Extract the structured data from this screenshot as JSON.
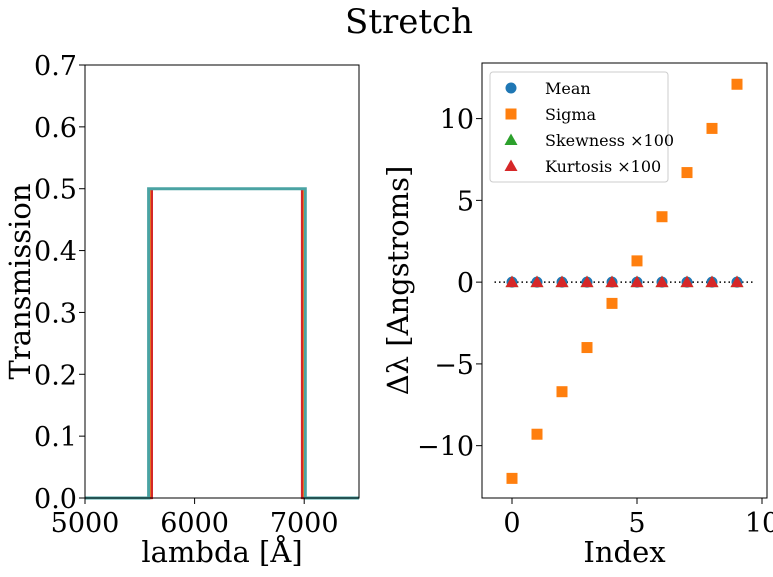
{
  "figure": {
    "suptitle": "Stretch"
  },
  "colors": {
    "blue": "#1f77b4",
    "orange": "#ff7f0e",
    "green": "#2ca02c",
    "red": "#d62728",
    "teal": "#4aa3a3"
  },
  "chart_data": [
    {
      "type": "line",
      "xlabel": "lambda [Å]",
      "ylabel": "Transmission",
      "xlim": [
        5000,
        7500
      ],
      "ylim": [
        0,
        0.7
      ],
      "xticks": [
        "5000",
        "6000",
        "7000"
      ],
      "yticks": [
        "0.0",
        "0.1",
        "0.2",
        "0.3",
        "0.4",
        "0.5",
        "0.6",
        "0.7"
      ],
      "grid": false,
      "series": [
        {
          "color": "#1f77b4",
          "x": [
            5000,
            5590,
            5590,
            7000,
            7000,
            7500
          ],
          "y": [
            0,
            0,
            0.5,
            0.5,
            0,
            0
          ]
        },
        {
          "color": "#ff7f0e",
          "x": [
            5000,
            5600,
            5600,
            6990,
            6990,
            7500
          ],
          "y": [
            0,
            0,
            0.5,
            0.5,
            0,
            0
          ]
        },
        {
          "color": "#d62728",
          "x": [
            5000,
            5610,
            5610,
            6980,
            6980,
            7500
          ],
          "y": [
            0,
            0,
            0.5,
            0.5,
            0,
            0
          ]
        },
        {
          "color": "#4aa3a3",
          "x": [
            5000,
            5580,
            5580,
            7010,
            7010,
            7500
          ],
          "y": [
            0,
            0,
            0.5,
            0.5,
            0,
            0
          ]
        }
      ]
    },
    {
      "type": "scatter",
      "xlabel": "Index",
      "ylabel": "Δλ [Angstroms]",
      "xlim": [
        -1.2,
        10.2
      ],
      "ylim": [
        -13.2,
        13.4
      ],
      "xticks": [
        0,
        5,
        10
      ],
      "yticks": [
        -10,
        -5,
        0,
        5,
        10
      ],
      "ytick_labels": [
        "−10",
        "−5",
        "0",
        "5",
        "10"
      ],
      "grid": false,
      "reference_line": {
        "y": 0,
        "style": "dotted"
      },
      "legend": {
        "placement": "top-left"
      },
      "series": [
        {
          "name": "Mean",
          "marker": "circle",
          "color": "#1f77b4",
          "x": [
            0,
            1,
            2,
            3,
            4,
            5,
            6,
            7,
            8,
            9
          ],
          "y": [
            0,
            0,
            0,
            0,
            0,
            0,
            0,
            0,
            0,
            0
          ]
        },
        {
          "name": "Sigma",
          "marker": "square",
          "color": "#ff7f0e",
          "x": [
            0,
            1,
            2,
            3,
            4,
            5,
            6,
            7,
            8,
            9
          ],
          "y": [
            -12.0,
            -9.3,
            -6.7,
            -4.0,
            -1.3,
            1.3,
            4.0,
            6.7,
            9.4,
            12.1
          ]
        },
        {
          "name": "Skewness ×100",
          "marker": "triangle",
          "color": "#2ca02c",
          "x": [
            0,
            1,
            2,
            3,
            4,
            5,
            6,
            7,
            8,
            9
          ],
          "y": [
            0,
            0,
            0,
            0,
            0,
            0,
            0,
            0,
            0,
            0
          ]
        },
        {
          "name": "Kurtosis ×100",
          "marker": "triangle",
          "color": "#d62728",
          "x": [
            0,
            1,
            2,
            3,
            4,
            5,
            6,
            7,
            8,
            9
          ],
          "y": [
            0,
            0,
            0,
            0,
            0,
            0,
            0,
            0,
            0,
            0
          ]
        }
      ]
    }
  ]
}
